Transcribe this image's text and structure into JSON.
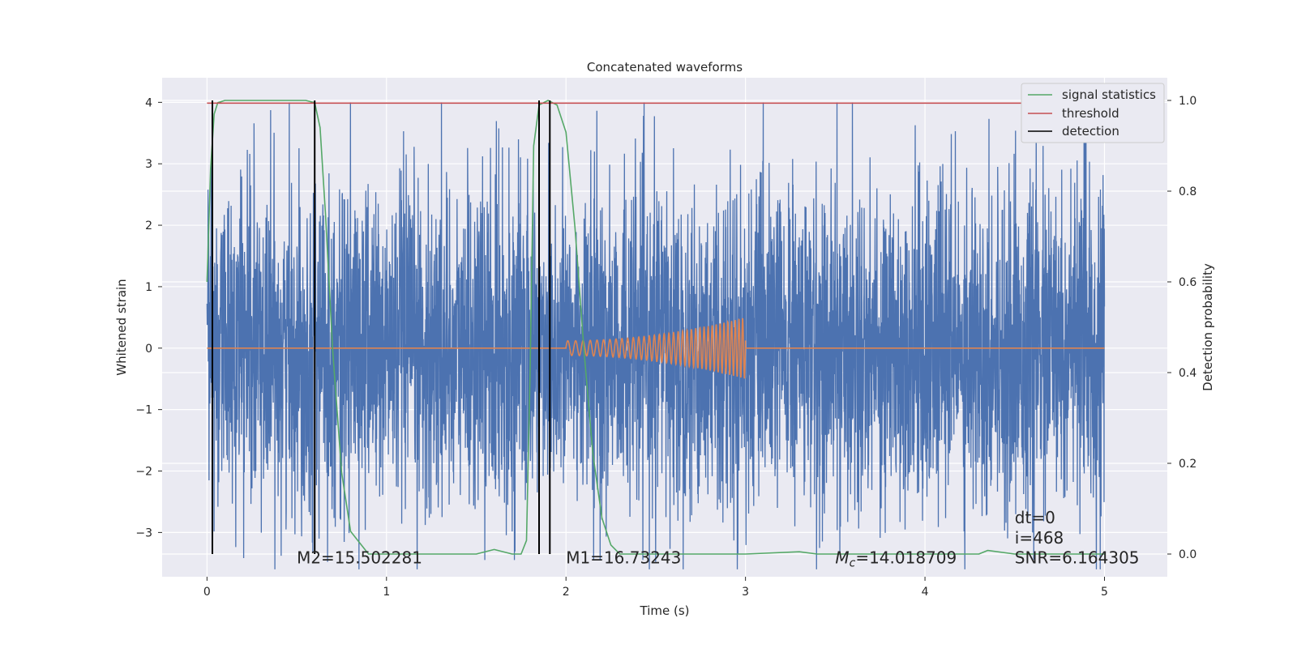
{
  "chart_data": {
    "type": "line",
    "title": "Concatenated waveforms",
    "xlabel": "Time (s)",
    "ylabel": "Whitened strain",
    "y2label": "Detection probability",
    "xlim": [
      -0.25,
      5.35
    ],
    "ylim": [
      -3.72,
      4.4
    ],
    "y2lim": [
      -0.05,
      1.05
    ],
    "xticks": [
      0,
      1,
      2,
      3,
      4,
      5
    ],
    "yticks": [
      -3,
      -2,
      -1,
      0,
      1,
      2,
      3,
      4
    ],
    "y2ticks": [
      0.0,
      0.2,
      0.4,
      0.6,
      0.8,
      1.0
    ],
    "grid": true,
    "legend_position": "top-right",
    "series": [
      {
        "name": "",
        "kind": "noise",
        "color": "#4c72b0",
        "x_range": [
          0,
          5
        ],
        "typical_amplitude": 1.3,
        "max": 4.0,
        "min": -3.6
      },
      {
        "name": "",
        "kind": "chirp",
        "color": "#dd8452",
        "x_range": [
          2.0,
          3.0
        ],
        "baseline": 0,
        "start_amplitude": 0.12,
        "end_amplitude": 0.5
      },
      {
        "name": "signal statistics",
        "color": "#55a868",
        "axis": "right",
        "x": [
          0.0,
          0.02,
          0.04,
          0.06,
          0.1,
          0.3,
          0.55,
          0.6,
          0.63,
          0.66,
          0.7,
          0.75,
          0.8,
          0.9,
          1.2,
          1.5,
          1.6,
          1.7,
          1.75,
          1.78,
          1.8,
          1.82,
          1.85,
          1.9,
          1.95,
          2.0,
          2.05,
          2.1,
          2.15,
          2.2,
          2.25,
          2.3,
          2.6,
          3.0,
          3.3,
          3.4,
          3.8,
          4.3,
          4.35,
          4.5,
          4.8,
          5.0
        ],
        "y": [
          0.6,
          0.85,
          0.97,
          0.995,
          1.0,
          1.0,
          1.0,
          0.995,
          0.94,
          0.75,
          0.45,
          0.18,
          0.05,
          0.0,
          0.0,
          0.0,
          0.01,
          0.0,
          0.0,
          0.03,
          0.4,
          0.9,
          0.99,
          1.0,
          0.99,
          0.93,
          0.72,
          0.45,
          0.22,
          0.08,
          0.02,
          0.0,
          0.0,
          0.0,
          0.005,
          0.0,
          0.0,
          0.0,
          0.008,
          0.0,
          0.0,
          0.0
        ]
      },
      {
        "name": "threshold",
        "color": "#c44e52",
        "axis": "right",
        "x": [
          0,
          5
        ],
        "y": [
          0.994,
          0.994
        ]
      },
      {
        "name": "detection",
        "color": "#000000",
        "axis": "right",
        "kind": "vlines",
        "x": [
          0.03,
          0.6,
          1.85,
          1.91
        ],
        "y_range": [
          0.0,
          1.0
        ]
      }
    ],
    "annotations": [
      {
        "text": "M2=15.502281",
        "x": 0.5,
        "y": -3.5
      },
      {
        "text": "M1=16.73243",
        "x": 2.0,
        "y": -3.5
      },
      {
        "text": "Mc=14.018709",
        "math": true,
        "x": 3.5,
        "y": -3.5
      },
      {
        "text": "dt=0",
        "x": 4.5,
        "y": -2.85
      },
      {
        "text": "i=468",
        "x": 4.5,
        "y": -3.18
      },
      {
        "text": "SNR=6.164305",
        "x": 4.5,
        "y": -3.5
      }
    ]
  }
}
